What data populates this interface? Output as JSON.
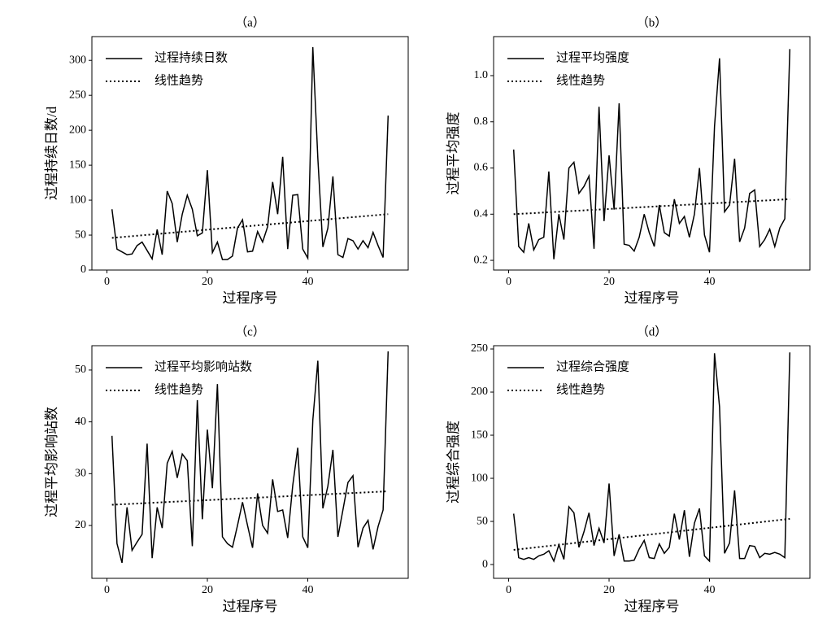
{
  "chart_data": [
    {
      "type": "line",
      "title": "（a）",
      "xlabel": "过程序号",
      "ylabel": "过程持续日数/d",
      "xlim": [
        -3,
        60
      ],
      "xticks": [
        0,
        20,
        40
      ],
      "ylim": [
        0,
        334
      ],
      "yticks": [
        0,
        50,
        100,
        150,
        200,
        250,
        300
      ],
      "legend": "upper left",
      "series": [
        {
          "name": "过程持续日数",
          "color": "#000000",
          "linestyle": "solid",
          "x": [
            1,
            2,
            3,
            4,
            5,
            6,
            7,
            8,
            9,
            10,
            11,
            12,
            13,
            14,
            15,
            16,
            17,
            18,
            19,
            20,
            21,
            22,
            23,
            24,
            25,
            26,
            27,
            28,
            29,
            30,
            31,
            32,
            33,
            34,
            35,
            36,
            37,
            38,
            39,
            40,
            41,
            42,
            43,
            44,
            45,
            46,
            47,
            48,
            49,
            50,
            51,
            52,
            53,
            54,
            55,
            56
          ],
          "values": [
            87,
            30,
            26,
            22,
            23,
            35,
            40,
            28,
            16,
            58,
            22,
            113,
            95,
            40,
            80,
            107,
            87,
            49,
            53,
            143,
            25,
            40,
            15,
            15,
            20,
            60,
            72,
            26,
            27,
            55,
            40,
            62,
            126,
            80,
            162,
            30,
            107,
            108,
            30,
            17,
            319,
            160,
            33,
            60,
            134,
            22,
            18,
            45,
            42,
            30,
            42,
            32,
            54,
            35,
            18,
            221
          ]
        },
        {
          "name": "线性趋势",
          "color": "#000000",
          "linestyle": "dotted",
          "x": [
            1,
            56
          ],
          "values": [
            46,
            80
          ]
        }
      ]
    },
    {
      "type": "line",
      "title": "（b）",
      "xlabel": "过程序号",
      "ylabel": "过程平均强度",
      "xlim": [
        -3,
        60
      ],
      "xticks": [
        0,
        20,
        40
      ],
      "ylim": [
        0.158,
        1.169
      ],
      "yticks": [
        0.2,
        0.4,
        0.6,
        0.8,
        {
          "value": 1,
          "label": "1.0"
        }
      ],
      "legend": "upper left",
      "series": [
        {
          "name": "过程平均强度",
          "color": "#000000",
          "linestyle": "solid",
          "x": [
            1,
            2,
            3,
            4,
            5,
            6,
            7,
            8,
            9,
            10,
            11,
            12,
            13,
            14,
            15,
            16,
            17,
            18,
            19,
            20,
            21,
            22,
            23,
            24,
            25,
            26,
            27,
            28,
            29,
            30,
            31,
            32,
            33,
            34,
            35,
            36,
            37,
            38,
            39,
            40,
            41,
            42,
            43,
            44,
            45,
            46,
            47,
            48,
            49,
            50,
            51,
            52,
            53,
            54,
            55,
            56
          ],
          "values": [
            0.68,
            0.26,
            0.235,
            0.36,
            0.245,
            0.29,
            0.3,
            0.585,
            0.205,
            0.4,
            0.29,
            0.6,
            0.625,
            0.49,
            0.52,
            0.565,
            0.25,
            0.865,
            0.37,
            0.655,
            0.42,
            0.88,
            0.27,
            0.265,
            0.24,
            0.3,
            0.4,
            0.32,
            0.26,
            0.44,
            0.32,
            0.305,
            0.465,
            0.36,
            0.39,
            0.3,
            0.4,
            0.6,
            0.31,
            0.235,
            0.78,
            1.075,
            0.41,
            0.44,
            0.64,
            0.28,
            0.34,
            0.49,
            0.505,
            0.26,
            0.29,
            0.335,
            0.26,
            0.34,
            0.38,
            1.115
          ]
        },
        {
          "name": "线性趋势",
          "color": "#000000",
          "linestyle": "dotted",
          "x": [
            1,
            56
          ],
          "values": [
            0.4,
            0.465
          ]
        }
      ]
    },
    {
      "type": "line",
      "title": "（c）",
      "xlabel": "过程序号",
      "ylabel": "过程平均影响站数",
      "xlim": [
        -3,
        60
      ],
      "xticks": [
        0,
        20,
        40
      ],
      "ylim": [
        9.8,
        54.7
      ],
      "yticks": [
        20,
        30,
        40,
        50
      ],
      "legend": "upper left",
      "series": [
        {
          "name": "过程平均影响站数",
          "color": "#000000",
          "linestyle": "solid",
          "x": [
            1,
            2,
            3,
            4,
            5,
            6,
            7,
            8,
            9,
            10,
            11,
            12,
            13,
            14,
            15,
            16,
            17,
            18,
            19,
            20,
            21,
            22,
            23,
            24,
            25,
            26,
            27,
            28,
            29,
            30,
            31,
            32,
            33,
            34,
            35,
            36,
            37,
            38,
            39,
            40,
            41,
            42,
            43,
            44,
            45,
            46,
            47,
            48,
            49,
            50,
            51,
            52,
            53,
            54,
            55,
            56
          ],
          "values": [
            37.3,
            16.5,
            12.8,
            23.5,
            15.2,
            16.8,
            18.3,
            35.8,
            13.7,
            23.5,
            19.5,
            32.0,
            34.3,
            29.2,
            33.8,
            32.5,
            16.0,
            44.2,
            21.2,
            38.5,
            27.2,
            47.3,
            17.8,
            16.5,
            15.8,
            20.0,
            24.5,
            20.0,
            15.7,
            26.2,
            20.0,
            18.5,
            28.9,
            22.7,
            23.0,
            17.6,
            27.7,
            35.0,
            17.8,
            15.7,
            40.3,
            51.8,
            23.3,
            27.6,
            34.6,
            17.8,
            23.0,
            28.3,
            29.6,
            15.8,
            19.5,
            21.0,
            15.4,
            19.8,
            23.0,
            53.6
          ]
        },
        {
          "name": "线性趋势",
          "color": "#000000",
          "linestyle": "dotted",
          "x": [
            1,
            56
          ],
          "values": [
            24.0,
            26.6
          ]
        }
      ]
    },
    {
      "type": "line",
      "title": "（d）",
      "xlabel": "过程序号",
      "ylabel": "过程综合强度",
      "xlim": [
        -3,
        60
      ],
      "xticks": [
        0,
        20,
        40
      ],
      "ylim": [
        -16,
        253.8
      ],
      "yticks": [
        0,
        50,
        100,
        150,
        200,
        250
      ],
      "legend": "upper left",
      "series": [
        {
          "name": "过程综合强度",
          "color": "#000000",
          "linestyle": "solid",
          "x": [
            1,
            2,
            3,
            4,
            5,
            6,
            7,
            8,
            9,
            10,
            11,
            12,
            13,
            14,
            15,
            16,
            17,
            18,
            19,
            20,
            21,
            22,
            23,
            24,
            25,
            26,
            27,
            28,
            29,
            30,
            31,
            32,
            33,
            34,
            35,
            36,
            37,
            38,
            39,
            40,
            41,
            42,
            43,
            44,
            45,
            46,
            47,
            48,
            49,
            50,
            51,
            52,
            53,
            54,
            55,
            56
          ],
          "values": [
            59,
            8,
            6,
            8,
            6,
            10,
            12,
            16,
            4,
            23,
            6,
            67,
            60,
            20,
            38,
            60,
            22,
            42,
            25,
            94,
            10,
            35,
            4,
            4,
            5,
            18,
            28,
            8,
            7,
            24,
            13,
            20,
            59,
            29,
            63,
            9,
            48,
            65,
            10,
            4,
            245,
            183,
            13,
            25,
            86,
            7,
            7,
            22,
            21,
            8,
            13,
            12,
            14,
            12,
            8,
            246
          ]
        },
        {
          "name": "线性趋势",
          "color": "#000000",
          "linestyle": "dotted",
          "x": [
            1,
            56
          ],
          "values": [
            17,
            53
          ]
        }
      ]
    }
  ]
}
